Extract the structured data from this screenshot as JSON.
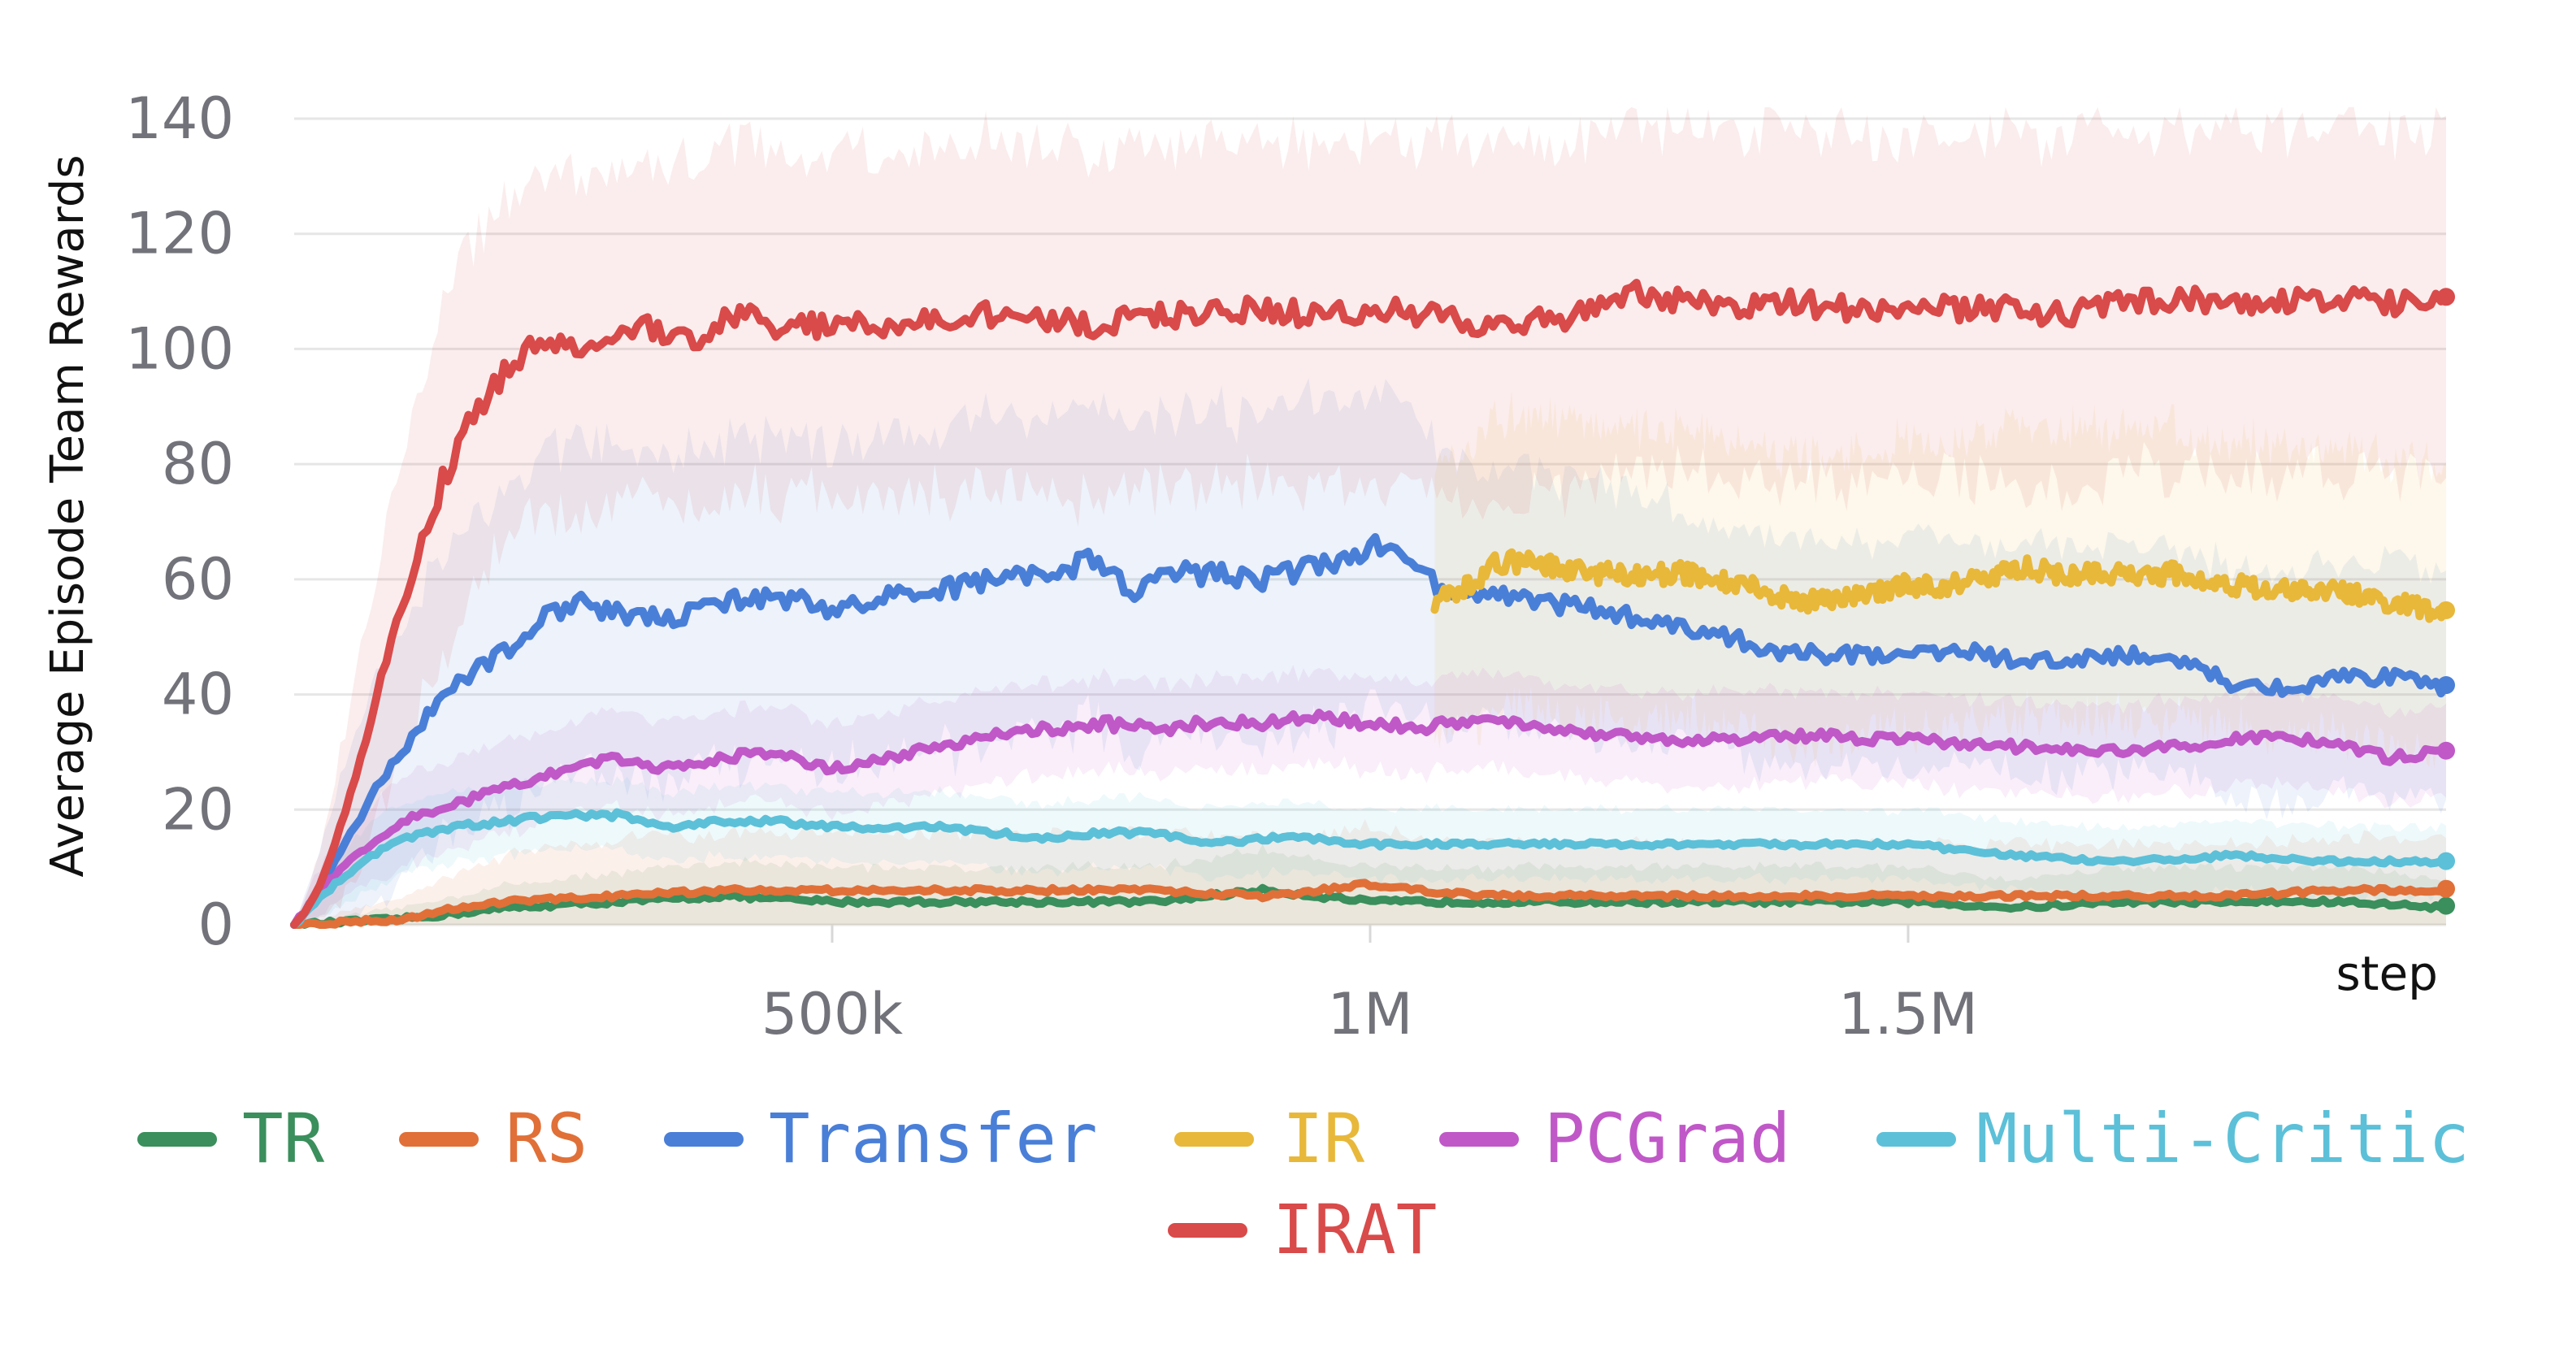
{
  "chart_data": {
    "type": "line",
    "title": "",
    "xlabel": "step",
    "ylabel": "Average Episode Team Rewards",
    "xlim": [
      0,
      2000000
    ],
    "ylim": [
      0,
      140
    ],
    "y_ticks": [
      0,
      20,
      40,
      60,
      80,
      100,
      120,
      140
    ],
    "y_tick_labels": [
      "0",
      "20",
      "40",
      "60",
      "80",
      "100",
      "120",
      "140"
    ],
    "x_ticks": [
      500000,
      1000000,
      1500000
    ],
    "x_tick_labels": [
      "500k",
      "1M",
      "1.5M"
    ],
    "grid": "horizontal",
    "legend_placement": "bottom",
    "series": [
      {
        "name": "TR",
        "color": "#3a8f5c",
        "x": [
          0,
          50000,
          100000,
          150000,
          200000,
          300000,
          400000,
          500000,
          600000,
          700000,
          800000,
          900000,
          1000000,
          1100000,
          1200000,
          1300000,
          1400000,
          1500000,
          1600000,
          1700000,
          1800000,
          1900000,
          2000000
        ],
        "y": [
          0,
          0.5,
          1,
          2,
          3,
          4,
          5,
          4,
          4,
          4,
          4,
          6,
          4,
          4,
          4,
          4,
          4,
          4,
          3,
          4,
          4,
          4,
          3
        ],
        "band": [
          0,
          1,
          2,
          3,
          4,
          5,
          6,
          6,
          6,
          6,
          6,
          7,
          6,
          6,
          6,
          6,
          6,
          6,
          5,
          6,
          6,
          6,
          5
        ]
      },
      {
        "name": "RS",
        "color": "#e07038",
        "x": [
          0,
          50000,
          100000,
          150000,
          200000,
          300000,
          400000,
          500000,
          600000,
          700000,
          800000,
          900000,
          1000000,
          1100000,
          1200000,
          1300000,
          1400000,
          1500000,
          1600000,
          1700000,
          1800000,
          1900000,
          2000000
        ],
        "y": [
          0,
          0.5,
          1,
          3,
          4,
          5,
          6,
          6,
          6,
          6,
          6,
          5,
          7,
          5,
          5,
          5,
          5,
          5,
          5,
          5,
          5,
          6,
          6
        ],
        "band": [
          0,
          2,
          4,
          6,
          8,
          10,
          10,
          10,
          10,
          10,
          10,
          10,
          10,
          9,
          9,
          9,
          9,
          9,
          9,
          9,
          9,
          9,
          9
        ]
      },
      {
        "name": "Transfer",
        "color": "#4a7fd8",
        "x": [
          0,
          20000,
          50000,
          80000,
          100000,
          130000,
          160000,
          200000,
          230000,
          260000,
          300000,
          350000,
          400000,
          450000,
          500000,
          550000,
          600000,
          650000,
          700000,
          740000,
          780000,
          820000,
          860000,
          900000,
          940000,
          980000,
          1000000,
          1040000,
          1080000,
          1120000,
          1160000,
          1200000,
          1260000,
          1320000,
          1380000,
          1440000,
          1500000,
          1540000,
          1600000,
          1660000,
          1700000,
          1760000,
          1800000,
          1860000,
          1900000,
          1960000,
          2000000
        ],
        "y": [
          0,
          5,
          15,
          25,
          30,
          38,
          43,
          48,
          53,
          56,
          54,
          53,
          56,
          57,
          55,
          57,
          58,
          60,
          61,
          63,
          58,
          61,
          61,
          60,
          62,
          64,
          66,
          62,
          57,
          57,
          56,
          55,
          53,
          51,
          47,
          47,
          47,
          48,
          46,
          46,
          47,
          46,
          42,
          41,
          43,
          43,
          41
        ],
        "band": [
          0,
          6,
          15,
          20,
          22,
          24,
          26,
          28,
          28,
          28,
          28,
          28,
          28,
          28,
          28,
          28,
          28,
          28,
          28,
          28,
          28,
          28,
          28,
          28,
          28,
          28,
          28,
          26,
          24,
          22,
          22,
          22,
          22,
          20,
          20,
          20,
          20,
          20,
          20,
          20,
          20,
          20,
          20,
          20,
          20,
          20,
          20
        ]
      },
      {
        "name": "IR",
        "color": "#e8b83a",
        "x": [
          1060000,
          1080000,
          1100000,
          1120000,
          1150000,
          1200000,
          1250000,
          1300000,
          1350000,
          1400000,
          1450000,
          1500000,
          1550000,
          1600000,
          1650000,
          1700000,
          1750000,
          1800000,
          1850000,
          1900000,
          1950000,
          2000000
        ],
        "y": [
          56,
          58,
          60,
          63,
          63,
          61,
          61,
          61,
          59,
          56,
          57,
          59,
          59,
          62,
          61,
          61,
          61,
          59,
          58,
          58,
          56,
          54
        ],
        "band": [
          24,
          24,
          25,
          25,
          25,
          25,
          25,
          25,
          25,
          25,
          25,
          25,
          25,
          25,
          25,
          25,
          25,
          25,
          25,
          25,
          25,
          25
        ]
      },
      {
        "name": "PCGrad",
        "color": "#c058c8",
        "x": [
          0,
          20000,
          50000,
          80000,
          100000,
          150000,
          200000,
          250000,
          300000,
          350000,
          400000,
          450000,
          500000,
          550000,
          600000,
          650000,
          700000,
          750000,
          800000,
          850000,
          900000,
          950000,
          1000000,
          1050000,
          1100000,
          1150000,
          1200000,
          1300000,
          1400000,
          1500000,
          1600000,
          1700000,
          1800000,
          1850000,
          1900000,
          1950000,
          2000000
        ],
        "y": [
          0,
          5,
          11,
          15,
          18,
          21,
          24,
          27,
          29,
          27,
          29,
          30,
          27,
          29,
          31,
          33,
          34,
          35,
          34,
          35,
          35,
          36,
          35,
          34,
          36,
          34,
          33,
          32,
          33,
          32,
          31,
          30,
          32,
          33,
          31,
          29,
          30
        ],
        "band": [
          0,
          4,
          6,
          7,
          8,
          8,
          8,
          8,
          8,
          8,
          8,
          8,
          8,
          8,
          8,
          8,
          8,
          8,
          8,
          8,
          8,
          8,
          8,
          8,
          8,
          8,
          8,
          8,
          8,
          8,
          8,
          8,
          8,
          8,
          8,
          8,
          8
        ]
      },
      {
        "name": "Multi-Critic",
        "color": "#5cc0d8",
        "x": [
          0,
          20000,
          50000,
          80000,
          100000,
          150000,
          200000,
          250000,
          300000,
          350000,
          400000,
          450000,
          500000,
          550000,
          600000,
          650000,
          700000,
          750000,
          800000,
          850000,
          900000,
          950000,
          1000000,
          1100000,
          1200000,
          1300000,
          1400000,
          1500000,
          1600000,
          1700000,
          1800000,
          1900000,
          2000000
        ],
        "y": [
          0,
          4,
          9,
          13,
          15,
          17,
          18,
          19,
          19,
          17,
          18,
          18,
          17,
          17,
          17,
          16,
          15,
          16,
          16,
          14,
          15,
          15,
          14,
          14,
          14,
          14,
          14,
          14,
          12,
          11,
          12,
          11,
          11
        ],
        "band": [
          0,
          3,
          5,
          6,
          6,
          6,
          6,
          6,
          6,
          6,
          6,
          6,
          6,
          6,
          6,
          6,
          6,
          6,
          6,
          6,
          6,
          6,
          6,
          6,
          6,
          6,
          6,
          6,
          6,
          6,
          6,
          6,
          6
        ]
      },
      {
        "name": "IRAT",
        "color": "#d94a4a",
        "x": [
          0,
          20000,
          40000,
          60000,
          80000,
          100000,
          120000,
          140000,
          160000,
          180000,
          200000,
          220000,
          250000,
          280000,
          300000,
          320000,
          350000,
          380000,
          400000,
          420000,
          450000,
          500000,
          550000,
          600000,
          650000,
          700000,
          750000,
          800000,
          850000,
          900000,
          950000,
          1000000,
          1050000,
          1100000,
          1150000,
          1200000,
          1250000,
          1300000,
          1350000,
          1400000,
          1450000,
          1500000,
          1550000,
          1600000,
          1650000,
          1700000,
          1750000,
          1800000,
          1850000,
          1900000,
          1950000,
          2000000
        ],
        "y": [
          0,
          5,
          15,
          28,
          42,
          55,
          68,
          78,
          86,
          92,
          97,
          100,
          101,
          99,
          103,
          104,
          103,
          102,
          105,
          106,
          104,
          104,
          104,
          105,
          106,
          105,
          104,
          106,
          106,
          107,
          106,
          107,
          106,
          104,
          105,
          106,
          110,
          108,
          107,
          108,
          107,
          108,
          107,
          107,
          106,
          108,
          109,
          108,
          108,
          109,
          108,
          109
        ],
        "band": [
          0,
          5,
          12,
          18,
          22,
          26,
          28,
          30,
          30,
          30,
          30,
          30,
          30,
          30,
          30,
          30,
          30,
          30,
          30,
          30,
          30,
          30,
          30,
          30,
          30,
          30,
          30,
          30,
          30,
          30,
          30,
          30,
          30,
          30,
          30,
          30,
          30,
          30,
          30,
          30,
          30,
          30,
          30,
          30,
          30,
          30,
          30,
          30,
          30,
          30,
          30,
          30
        ]
      }
    ]
  }
}
